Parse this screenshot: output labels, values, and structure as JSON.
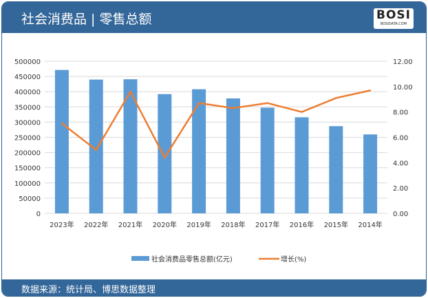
{
  "header": {
    "title": "社会消费品 | 零售总额",
    "logo_text": "BOSI",
    "logo_sub": "BOSIDATA.COM"
  },
  "footer": {
    "source": "数据来源：统计局、博思数据整理"
  },
  "colors": {
    "bar": "#5b9bd5",
    "line": "#ed7d31",
    "header": "#336699"
  },
  "chart_data": {
    "type": "bar+line",
    "categories": [
      "2023年",
      "2022年",
      "2021年",
      "2020年",
      "2019年",
      "2018年",
      "2017年",
      "2016年",
      "2015年",
      "2014年"
    ],
    "series": [
      {
        "name": "社会消费品零售总额(亿元)",
        "type": "bar",
        "axis": "left",
        "values": [
          471495,
          439733,
          440823,
          391981,
          408017,
          377783,
          347327,
          315806,
          286588,
          259487
        ]
      },
      {
        "name": "增长(%)",
        "type": "line",
        "axis": "right",
        "values": [
          7.1,
          5.0,
          9.6,
          4.4,
          8.7,
          8.3,
          8.7,
          8.0,
          9.1,
          9.7
        ]
      }
    ],
    "y_left": {
      "range": [
        0,
        500000
      ],
      "ticks": [
        "0",
        "50000",
        "100000",
        "150000",
        "200000",
        "250000",
        "300000",
        "350000",
        "400000",
        "450000",
        "500000"
      ]
    },
    "y_right": {
      "range": [
        0,
        12
      ],
      "ticks": [
        "0.00",
        "2.00",
        "4.00",
        "6.00",
        "8.00",
        "10.00",
        "12.00"
      ]
    },
    "grid": true,
    "legend": "bottom"
  }
}
